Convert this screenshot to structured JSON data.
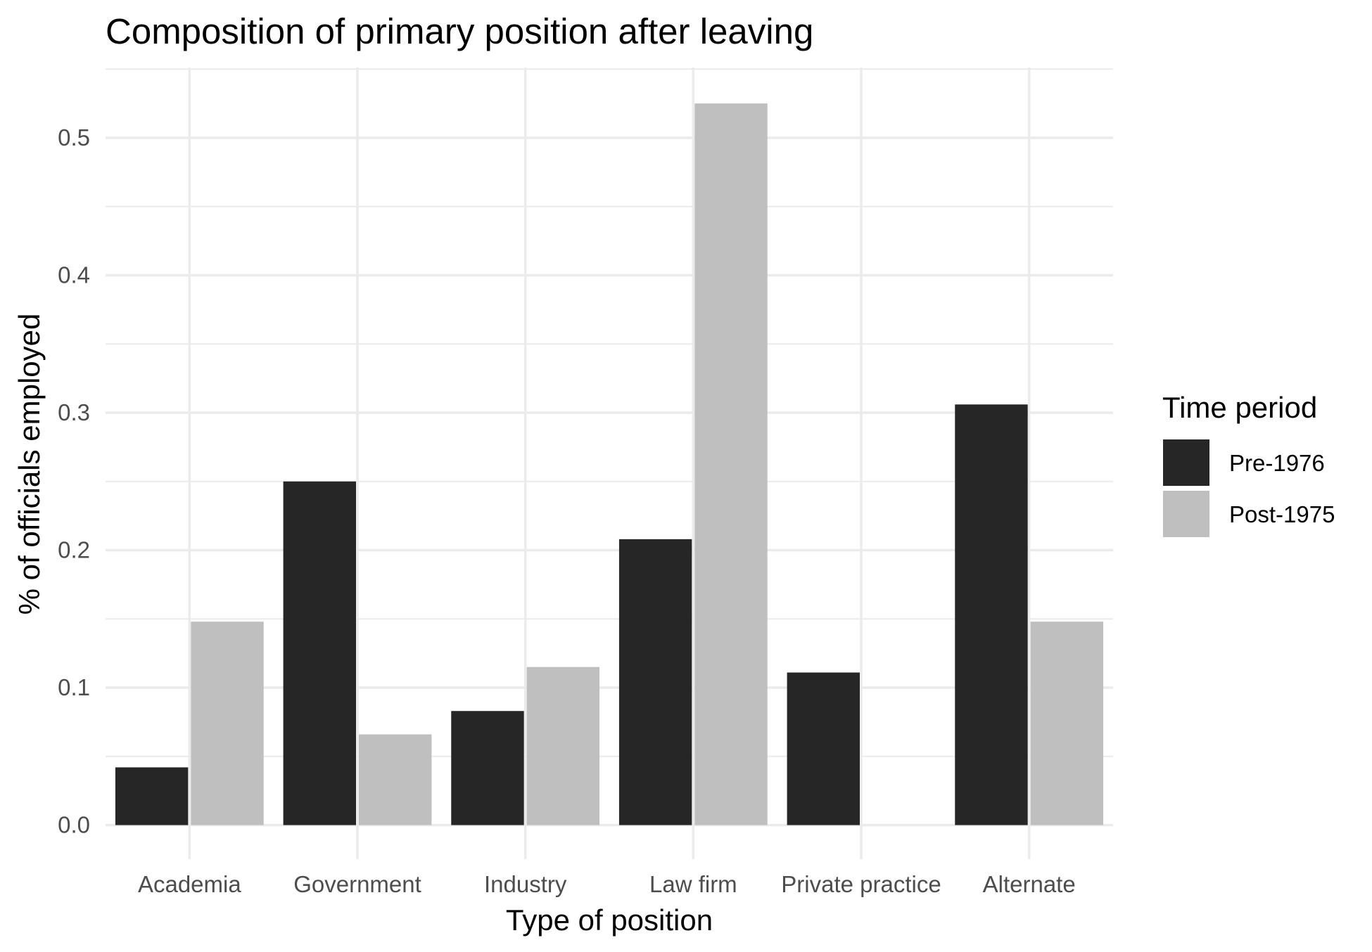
{
  "chart_data": {
    "type": "bar",
    "title": "Composition of primary position after leaving",
    "xlabel": "Type of position",
    "ylabel": "% of officials employed",
    "categories": [
      "Academia",
      "Government",
      "Industry",
      "Law firm",
      "Private practice",
      "Alternate"
    ],
    "series": [
      {
        "name": "Pre-1976",
        "color": "#262626",
        "values": [
          0.042,
          0.25,
          0.083,
          0.208,
          0.111,
          0.306
        ]
      },
      {
        "name": "Post-1975",
        "color": "#bfbfbf",
        "values": [
          0.148,
          0.066,
          0.115,
          0.525,
          0.0,
          0.148
        ]
      }
    ],
    "ylim": [
      0,
      0.55
    ],
    "yticks": [
      0.0,
      0.1,
      0.2,
      0.3,
      0.4,
      0.5
    ],
    "ytick_labels": [
      "0.0",
      "0.1",
      "0.2",
      "0.3",
      "0.4",
      "0.5"
    ],
    "legend": {
      "title": "Time period",
      "position": "right"
    },
    "grid": true
  }
}
